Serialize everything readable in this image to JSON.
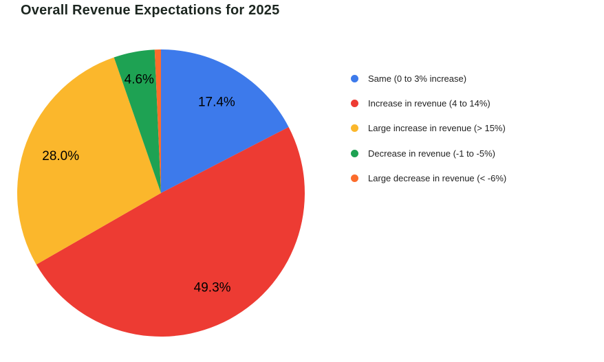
{
  "chart_data": {
    "type": "pie",
    "title": "Overall Revenue Expectations for 2025",
    "legend_position": "right",
    "start_angle_deg": 0,
    "direction": "clockwise",
    "label_format": "percent",
    "total": 100,
    "series": [
      {
        "name": "Same (0 to 3% increase)",
        "value": 17.4,
        "label": "17.4%",
        "color": "#3D7AEB"
      },
      {
        "name": "Increase in revenue (4 to 14%)",
        "value": 49.3,
        "label": "49.3%",
        "color": "#ED3B33"
      },
      {
        "name": "Large increase in revenue (> 15%)",
        "value": 28.0,
        "label": "28.0%",
        "color": "#FBB72C"
      },
      {
        "name": "Decrease in revenue (-1 to -5%)",
        "value": 4.6,
        "label": "4.6%",
        "color": "#1EA253"
      },
      {
        "name": "Large decrease in revenue (< -6%)",
        "value": 0.7,
        "label": "",
        "color": "#FC6C2C"
      }
    ]
  }
}
